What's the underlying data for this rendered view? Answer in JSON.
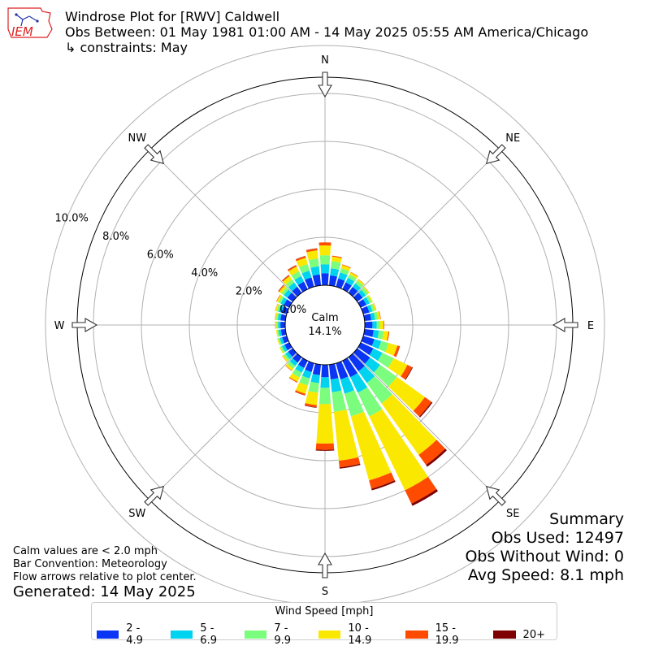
{
  "header": {
    "title_line1": "Windrose Plot for [RWV] Caldwell",
    "title_line2": "Obs Between: 01 May 1981 01:00 AM - 14 May 2025 05:55 AM America/Chicago",
    "title_line3": "↳ constraints: May",
    "logo_text": "IEM"
  },
  "summary": {
    "heading": "Summary",
    "obs_used": "Obs Used: 12497",
    "obs_without_wind": "Obs Without Wind: 0",
    "avg_speed": "Avg Speed: 8.1 mph"
  },
  "notes": {
    "calm_note": "Calm values are < 2.0 mph",
    "bar_convention": "Bar Convention: Meteorology",
    "flow_arrows": "Flow arrows relative to plot center.",
    "generated": "Generated: 14 May 2025"
  },
  "colors": {
    "accent_ring": "#000000",
    "grid": "#b0b0b0",
    "logo_red": "#d22",
    "logo_blue": "#2233aa"
  },
  "chart_data": {
    "type": "windrose",
    "calm": {
      "label": "Calm",
      "value_label": "14.1%",
      "value": 14.1
    },
    "compass_labels": [
      "N",
      "NE",
      "E",
      "SE",
      "S",
      "SW",
      "W",
      "NW"
    ],
    "radial_ticks": [
      "0.0%",
      "2.0%",
      "4.0%",
      "6.0%",
      "8.0%",
      "10.0%"
    ],
    "radial_values": [
      0,
      2,
      4,
      6,
      8,
      10
    ],
    "legend_title": "Wind Speed [mph]",
    "bins": [
      {
        "label": "2 - 4.9",
        "color": "#0a35f4"
      },
      {
        "label": "5 - 6.9",
        "color": "#00d3f0"
      },
      {
        "label": "7 - 9.9",
        "color": "#7bfd7d"
      },
      {
        "label": "10 - 14.9",
        "color": "#fbe800"
      },
      {
        "label": "15 - 19.9",
        "color": "#ff4b00"
      },
      {
        "label": "20+",
        "color": "#7f0000"
      }
    ],
    "direction_step_deg": 10,
    "sectors": [
      {
        "dir": 0,
        "values": [
          0.5,
          0.37,
          0.38,
          0.41,
          0.13,
          0.0
        ]
      },
      {
        "dir": 10,
        "values": [
          0.42,
          0.3,
          0.3,
          0.19,
          0.04,
          0.0
        ]
      },
      {
        "dir": 20,
        "values": [
          0.36,
          0.26,
          0.18,
          0.14,
          0.03,
          0.0
        ]
      },
      {
        "dir": 30,
        "values": [
          0.32,
          0.21,
          0.15,
          0.1,
          0.02,
          0.0
        ]
      },
      {
        "dir": 40,
        "values": [
          0.3,
          0.19,
          0.14,
          0.07,
          0.01,
          0.0
        ]
      },
      {
        "dir": 50,
        "values": [
          0.28,
          0.17,
          0.12,
          0.05,
          0.01,
          0.0
        ]
      },
      {
        "dir": 60,
        "values": [
          0.26,
          0.15,
          0.1,
          0.05,
          0.0,
          0.0
        ]
      },
      {
        "dir": 70,
        "values": [
          0.26,
          0.14,
          0.1,
          0.06,
          0.01,
          0.0
        ]
      },
      {
        "dir": 80,
        "values": [
          0.28,
          0.16,
          0.12,
          0.1,
          0.02,
          0.0
        ]
      },
      {
        "dir": 90,
        "values": [
          0.32,
          0.18,
          0.14,
          0.14,
          0.03,
          0.0
        ]
      },
      {
        "dir": 100,
        "values": [
          0.38,
          0.22,
          0.2,
          0.2,
          0.04,
          0.0
        ]
      },
      {
        "dir": 110,
        "values": [
          0.48,
          0.3,
          0.32,
          0.38,
          0.1,
          0.01
        ]
      },
      {
        "dir": 120,
        "values": [
          0.58,
          0.42,
          0.52,
          0.64,
          0.22,
          0.03
        ]
      },
      {
        "dir": 130,
        "values": [
          0.66,
          0.52,
          0.85,
          1.45,
          0.34,
          0.05
        ]
      },
      {
        "dir": 140,
        "values": [
          0.72,
          0.6,
          1.05,
          2.65,
          0.52,
          0.09
        ]
      },
      {
        "dir": 150,
        "values": [
          0.76,
          0.72,
          1.1,
          3.42,
          0.62,
          0.1
        ]
      },
      {
        "dir": 160,
        "values": [
          0.7,
          0.62,
          0.98,
          2.78,
          0.36,
          0.07
        ]
      },
      {
        "dir": 170,
        "values": [
          0.62,
          0.54,
          0.82,
          2.05,
          0.28,
          0.05
        ]
      },
      {
        "dir": 180,
        "values": [
          0.52,
          0.44,
          0.68,
          1.65,
          0.26,
          0.04
        ]
      },
      {
        "dir": 190,
        "values": [
          0.44,
          0.34,
          0.4,
          0.52,
          0.09,
          0.02
        ]
      },
      {
        "dir": 200,
        "values": [
          0.38,
          0.28,
          0.3,
          0.36,
          0.07,
          0.01
        ]
      },
      {
        "dir": 210,
        "values": [
          0.33,
          0.22,
          0.22,
          0.2,
          0.04,
          0.0
        ]
      },
      {
        "dir": 220,
        "values": [
          0.28,
          0.17,
          0.14,
          0.1,
          0.02,
          0.0
        ]
      },
      {
        "dir": 230,
        "values": [
          0.24,
          0.14,
          0.1,
          0.06,
          0.01,
          0.0
        ]
      },
      {
        "dir": 240,
        "values": [
          0.22,
          0.12,
          0.08,
          0.04,
          0.0,
          0.0
        ]
      },
      {
        "dir": 250,
        "values": [
          0.2,
          0.11,
          0.07,
          0.04,
          0.0,
          0.0
        ]
      },
      {
        "dir": 260,
        "values": [
          0.19,
          0.1,
          0.06,
          0.04,
          0.0,
          0.0
        ]
      },
      {
        "dir": 270,
        "values": [
          0.2,
          0.1,
          0.06,
          0.05,
          0.01,
          0.0
        ]
      },
      {
        "dir": 280,
        "values": [
          0.21,
          0.11,
          0.07,
          0.05,
          0.01,
          0.0
        ]
      },
      {
        "dir": 290,
        "values": [
          0.23,
          0.13,
          0.08,
          0.06,
          0.01,
          0.0
        ]
      },
      {
        "dir": 300,
        "values": [
          0.25,
          0.15,
          0.1,
          0.08,
          0.02,
          0.0
        ]
      },
      {
        "dir": 310,
        "values": [
          0.28,
          0.18,
          0.12,
          0.12,
          0.04,
          0.01
        ]
      },
      {
        "dir": 320,
        "values": [
          0.31,
          0.22,
          0.16,
          0.17,
          0.05,
          0.01
        ]
      },
      {
        "dir": 330,
        "values": [
          0.35,
          0.26,
          0.22,
          0.22,
          0.06,
          0.01
        ]
      },
      {
        "dir": 340,
        "values": [
          0.4,
          0.3,
          0.28,
          0.28,
          0.07,
          0.01
        ]
      },
      {
        "dir": 350,
        "values": [
          0.46,
          0.34,
          0.33,
          0.34,
          0.08,
          0.01
        ]
      }
    ]
  }
}
